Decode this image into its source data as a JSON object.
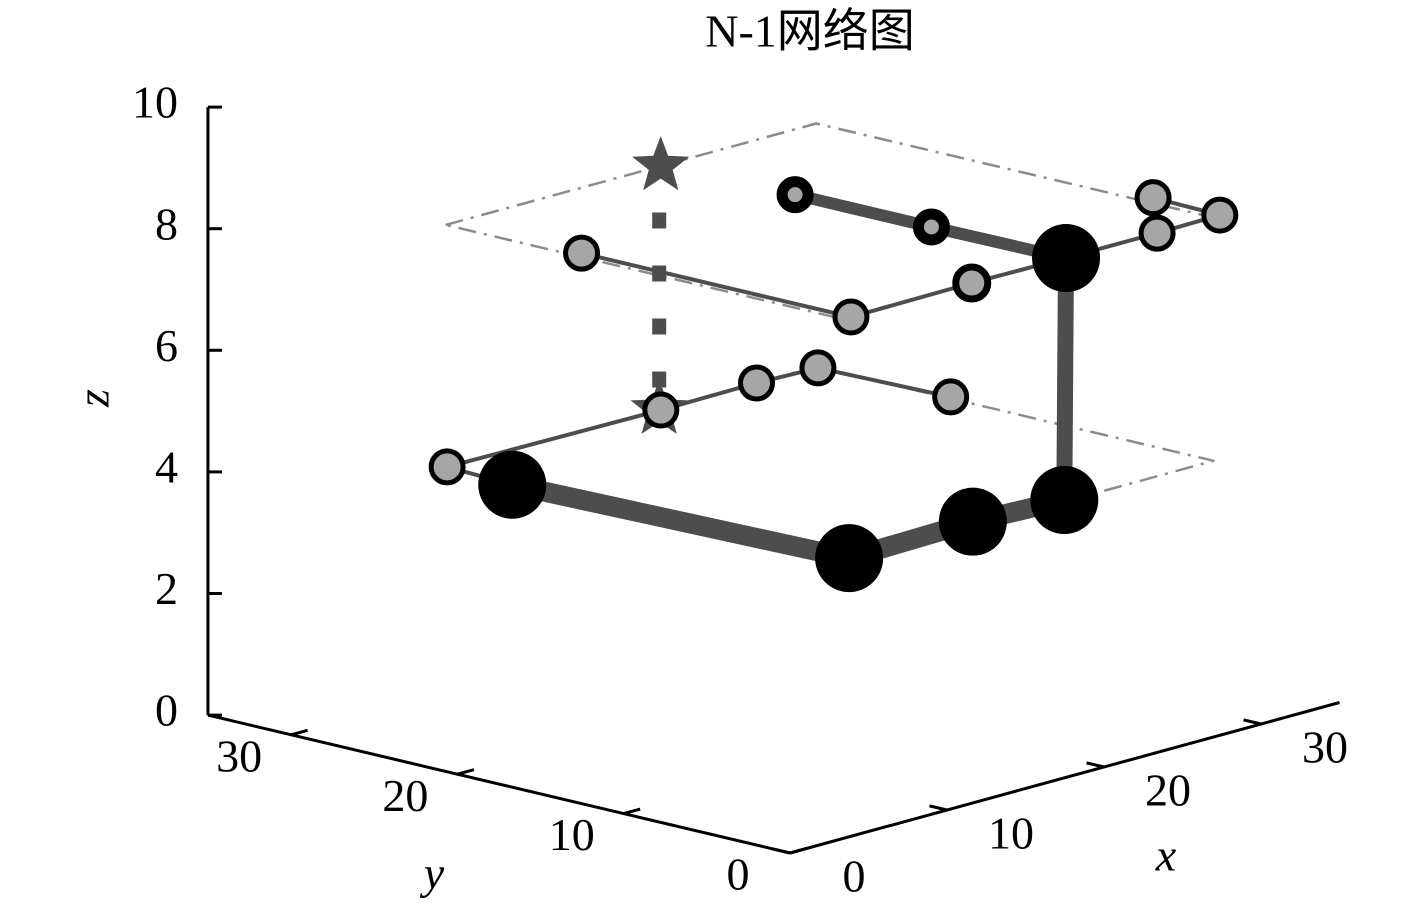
{
  "chart_data": {
    "type": "network3d",
    "title": "N-1网络图",
    "xlabel": "x",
    "ylabel": "y",
    "zlabel": "z",
    "xlim": [
      0,
      35
    ],
    "ylim": [
      0,
      35
    ],
    "zlim": [
      0,
      10
    ],
    "xticks": [
      0,
      10,
      20,
      30
    ],
    "yticks": [
      0,
      10,
      20,
      30
    ],
    "zticks": [
      0,
      2,
      4,
      6,
      8,
      10
    ],
    "lines": [
      {
        "color": "#8c8c8c",
        "width": 2.5,
        "dash": "dashdot",
        "x": [
          3.7,
          27.3,
          27.3,
          3.7,
          3.7
        ],
        "y": [
          24.2,
          24.2,
          0.3,
          0.3,
          24.2
        ],
        "z": [
          8.5,
          8.5,
          8.5,
          8.5,
          8.5
        ]
      },
      {
        "color": "#8c8c8c",
        "width": 2.5,
        "dash": "dashdot",
        "x": [
          3.7,
          27.3,
          27.3,
          3.7,
          3.7
        ],
        "y": [
          24.2,
          24.2,
          0.3,
          0.3,
          24.2
        ],
        "z": [
          4.5,
          4.5,
          4.5,
          4.5,
          4.5
        ]
      },
      {
        "color": "#4d4d4d",
        "width": 20,
        "dash": "solid",
        "x": [
          3.6,
          4.4,
          12.6,
          18.0
        ],
        "y": [
          20.1,
          0.6,
          0.9,
          0.5
        ],
        "z": [
          4.5,
          4.5,
          4.5,
          4.5
        ]
      },
      {
        "color": "#4d4d4d",
        "width": 16,
        "dash": "solid",
        "x": [
          18.0,
          17.9
        ],
        "y": [
          0.5,
          0.3
        ],
        "z": [
          4.5,
          8.5
        ]
      },
      {
        "color": "#4d4d4d",
        "width": 12,
        "dash": "solid",
        "x": [
          17.8,
          17.8,
          17.9
        ],
        "y": [
          16.5,
          8.3,
          0.3
        ],
        "z": [
          8.5,
          8.5,
          8.5
        ]
      },
      {
        "color": "#4d4d4d",
        "width": 4,
        "dash": "solid",
        "x": [
          4.2,
          4.2,
          12.0,
          17.9,
          23.7,
          27.8
        ],
        "y": [
          16.5,
          0.3,
          0.4,
          0.3,
          0.3,
          0.4
        ],
        "z": [
          8.5,
          8.5,
          8.5,
          8.5,
          8.5,
          8.5
        ]
      },
      {
        "color": "#4d4d4d",
        "width": 4,
        "dash": "solid",
        "x": [
          28.0,
          27.8
        ],
        "y": [
          4.6,
          0.4
        ],
        "z": [
          8.5,
          8.5
        ]
      },
      {
        "color": "#4d4d4d",
        "width": 4,
        "dash": "solid",
        "x": [
          3.9,
          17.3,
          23.5,
          27.2,
          27.5
        ],
        "y": [
          24.3,
          24.1,
          24.2,
          24.0,
          16.3
        ],
        "z": [
          4.5,
          4.5,
          4.5,
          4.5,
          4.5
        ]
      },
      {
        "color": "#4d4d4d",
        "width": 4,
        "dash": "solid",
        "x": [
          3.9,
          3.6
        ],
        "y": [
          24.3,
          20.1
        ],
        "z": [
          4.5,
          4.5
        ]
      },
      {
        "color": "#4d4d4d",
        "width": 14,
        "dash": "dotted",
        "x": [
          17.3,
          17.3
        ],
        "y": [
          24.2,
          24.2
        ],
        "z": [
          8.5,
          4.5
        ]
      }
    ],
    "markers": [
      {
        "marker": "star",
        "color": "#4d4d4d",
        "edge": "#4d4d4d",
        "size": 30,
        "edge_width": 0,
        "x": [
          17.4,
          17.3
        ],
        "y": [
          24.2,
          24.2
        ],
        "z": [
          8.5,
          4.5
        ]
      },
      {
        "marker": "circle",
        "color": "#000000",
        "edge": "#000000",
        "size": 34,
        "edge_width": 0,
        "x": [
          3.6,
          4.4,
          12.6,
          18.0,
          17.9
        ],
        "y": [
          20.1,
          0.6,
          0.9,
          0.5,
          0.3
        ],
        "z": [
          4.5,
          4.5,
          4.5,
          4.5,
          8.5
        ]
      },
      {
        "marker": "circle",
        "color": "#a6a6a6",
        "edge": "#000000",
        "size": 13,
        "edge_width": 11,
        "x": [
          17.8,
          17.8
        ],
        "y": [
          16.5,
          8.3
        ],
        "z": [
          8.5,
          8.5
        ]
      },
      {
        "marker": "circle",
        "color": "#a6a6a6",
        "edge": "#000000",
        "size": 16,
        "edge_width": 7,
        "x": [
          12.0
        ],
        "y": [
          0.4
        ],
        "z": [
          8.5
        ]
      },
      {
        "marker": "circle",
        "color": "#a6a6a6",
        "edge": "#000000",
        "size": 16,
        "edge_width": 5,
        "x": [
          4.2,
          4.2,
          23.7,
          27.8,
          28.0,
          3.9,
          17.3,
          23.5,
          27.2,
          27.5
        ],
        "y": [
          16.5,
          0.3,
          0.3,
          0.4,
          4.6,
          24.3,
          24.1,
          24.2,
          24.0,
          16.3
        ],
        "z": [
          8.5,
          8.5,
          8.5,
          8.5,
          8.5,
          4.5,
          4.5,
          4.5,
          4.5,
          4.5
        ]
      }
    ]
  }
}
